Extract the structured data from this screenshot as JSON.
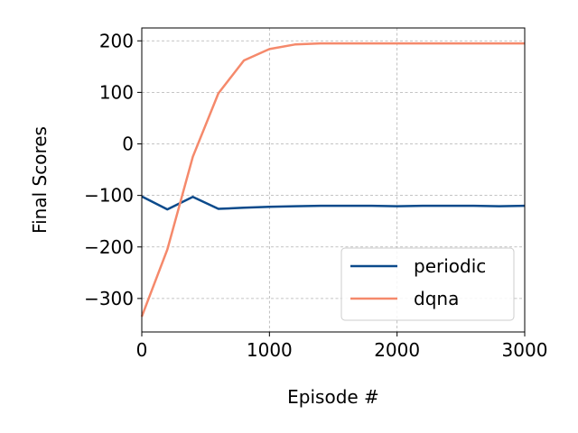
{
  "chart_data": {
    "type": "line",
    "title": "",
    "xlabel": "Episode #",
    "ylabel": "Final Scores",
    "xlim": [
      0,
      3000
    ],
    "ylim": [
      -365,
      225
    ],
    "xticks": [
      0,
      1000,
      2000,
      3000
    ],
    "xtick_labels": [
      "0",
      "1000",
      "2000",
      "3000"
    ],
    "yticks": [
      -300,
      -200,
      -100,
      0,
      100,
      200
    ],
    "ytick_labels": [
      "−300",
      "−200",
      "−100",
      "0",
      "100",
      "200"
    ],
    "grid": true,
    "legend_position": "bottom-right",
    "series": [
      {
        "name": "periodic",
        "color": "#0b4a8b",
        "x": [
          0,
          200,
          400,
          600,
          800,
          1000,
          1200,
          1400,
          1600,
          1800,
          2000,
          2200,
          2400,
          2600,
          2800,
          3000
        ],
        "y": [
          -102,
          -127,
          -103,
          -126,
          -124,
          -122,
          -121,
          -120,
          -120,
          -120,
          -121,
          -120,
          -120,
          -120,
          -121,
          -120
        ]
      },
      {
        "name": "dqna",
        "color": "#f5896b",
        "x": [
          0,
          200,
          400,
          600,
          800,
          1000,
          1200,
          1400,
          1600,
          1800,
          2000,
          2200,
          2400,
          2600,
          2800,
          3000
        ],
        "y": [
          -335,
          -205,
          -25,
          98,
          162,
          184,
          193,
          195,
          195,
          195,
          195,
          195,
          195,
          195,
          195,
          195
        ]
      }
    ]
  }
}
